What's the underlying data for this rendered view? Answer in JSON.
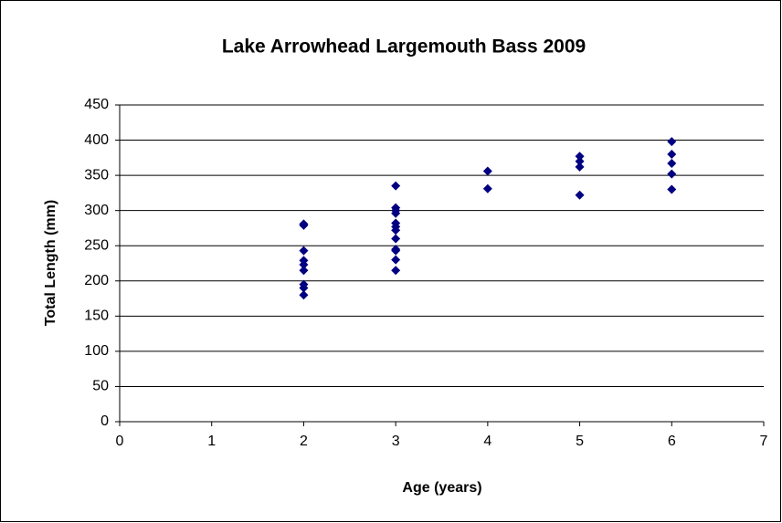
{
  "chart_data": {
    "type": "scatter",
    "title": "Lake Arrowhead Largemouth Bass 2009",
    "xlabel": "Age (years)",
    "ylabel": "Total Length (mm)",
    "series": [
      {
        "name": "Total Length",
        "color": "#000080",
        "x": [
          2,
          2,
          2,
          2,
          2,
          2,
          2,
          2,
          2,
          3,
          3,
          3,
          3,
          3,
          3,
          3,
          3,
          3,
          3,
          3,
          3,
          4,
          4,
          5,
          5,
          5,
          5,
          6,
          6,
          6,
          6,
          6
        ],
        "values": [
          281,
          279,
          243,
          229,
          223,
          215,
          195,
          190,
          180,
          335,
          304,
          300,
          296,
          282,
          277,
          272,
          260,
          245,
          243,
          230,
          215,
          356,
          331,
          377,
          370,
          362,
          322,
          398,
          380,
          367,
          352,
          330
        ]
      }
    ],
    "xlim": [
      0,
      7
    ],
    "xticks": [
      0,
      1,
      2,
      3,
      4,
      5,
      6,
      7
    ],
    "ylim": [
      0,
      450
    ],
    "yticks": [
      0,
      50,
      100,
      150,
      200,
      250,
      300,
      350,
      400,
      450
    ],
    "grid": true
  }
}
